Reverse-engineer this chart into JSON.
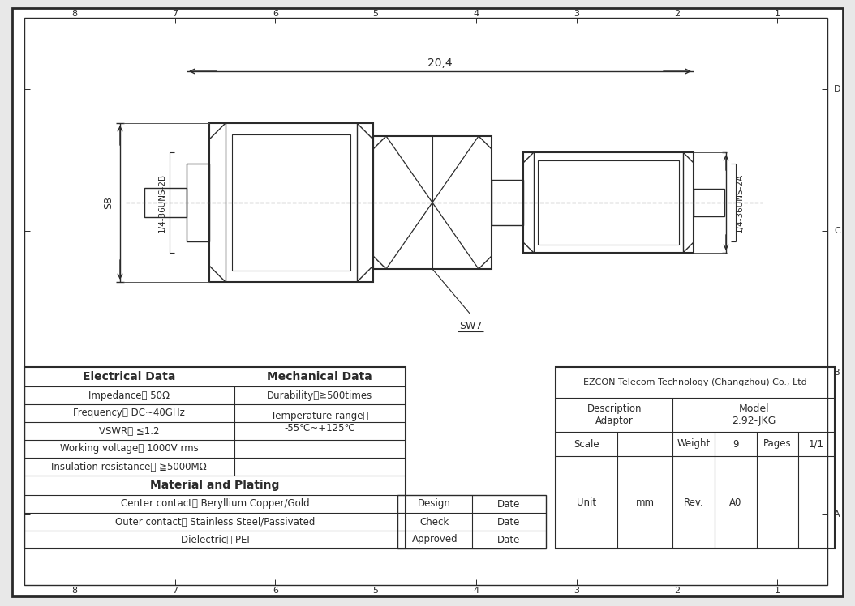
{
  "bg_color": "#e8e8e8",
  "drawing_bg": "#ffffff",
  "line_color": "#2a2a2a",
  "company": "EZCON Telecom Technology (Changzhou) Co., Ltd",
  "description": "Adaptor",
  "model": "2.92-JKG",
  "weight_val": "9",
  "pages_val": "1/1",
  "unit_val": "mm",
  "rev_val": "A0",
  "border_letters": [
    "D",
    "C",
    "B",
    "A"
  ],
  "border_numbers": [
    "8",
    "7",
    "6",
    "5",
    "4",
    "3",
    "2",
    "1"
  ],
  "dim_20_4": "20,4",
  "label_S8": "S8",
  "label_thread_B": "1/4-36UNS-2B",
  "label_thread_A": "1/4-36UNS-2A",
  "label_SW7": "SW7",
  "elec_header": "Electrical Data",
  "mech_header": "Mechanical Data",
  "elec_rows": [
    "Impedance： 50Ω",
    "Frequency： DC~40GHz",
    "VSWR： ≦1.2",
    "Working voltage： 1000V rms",
    "Insulation resistance： ≧5000MΩ"
  ],
  "mat_header": "Material and Plating",
  "mat_rows": [
    "Center contact： Beryllium Copper/Gold",
    "Outer contact： Stainless Steel/Passivated",
    "Dielectric： PEI"
  ],
  "sign_rows": [
    "Design",
    "Check",
    "Approved"
  ]
}
